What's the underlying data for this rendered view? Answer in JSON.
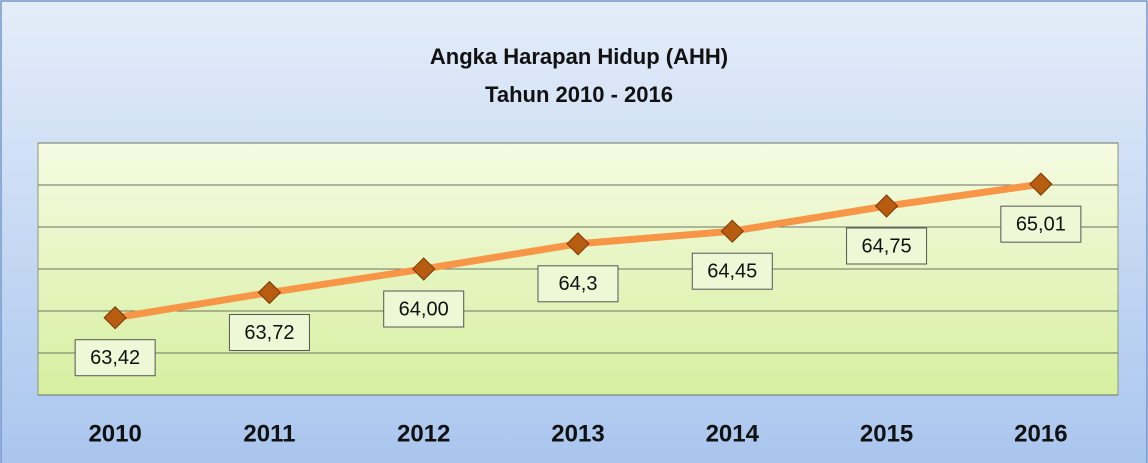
{
  "chart_data": {
    "type": "line",
    "title": "Angka Harapan Hidup (AHH)",
    "subtitle": "Tahun 2010 - 2016",
    "categories": [
      "2010",
      "2011",
      "2012",
      "2013",
      "2014",
      "2015",
      "2016"
    ],
    "series": [
      {
        "color": "#f79646",
        "marker_color": "#b85c10",
        "values": [
          63.42,
          63.72,
          64.0,
          64.3,
          64.45,
          64.75,
          65.01
        ],
        "value_labels": [
          "63,42",
          "63,72",
          "64,00",
          "64,3",
          "64,45",
          "64,75",
          "65,01"
        ]
      }
    ],
    "ylim": [
      62.5,
      65.5
    ],
    "yticks": [
      62.5,
      63,
      63.5,
      64,
      64.5,
      65,
      65.5
    ],
    "grid": true
  }
}
